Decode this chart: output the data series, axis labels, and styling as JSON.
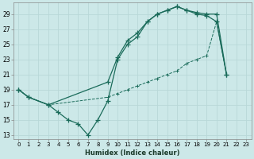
{
  "xlabel": "Humidex (Indice chaleur)",
  "bg_color": "#cce8e8",
  "grid_color": "#b8d8d8",
  "line_color": "#1a6b5a",
  "xlim": [
    -0.5,
    23.5
  ],
  "ylim": [
    12.5,
    30.5
  ],
  "yticks": [
    13,
    15,
    17,
    19,
    21,
    23,
    25,
    27,
    29
  ],
  "xticks": [
    0,
    1,
    2,
    3,
    4,
    5,
    6,
    7,
    8,
    9,
    10,
    11,
    12,
    13,
    14,
    15,
    16,
    17,
    18,
    19,
    20,
    21,
    22,
    23
  ],
  "line1_x": [
    0,
    1,
    3,
    4,
    5,
    6,
    7,
    8,
    9,
    10,
    11,
    12,
    13,
    14,
    15,
    16,
    17,
    18,
    19,
    20,
    21
  ],
  "line1_y": [
    19,
    18,
    17,
    16,
    15,
    14.5,
    13,
    15,
    17.5,
    23,
    25,
    26,
    28,
    29,
    29.5,
    30,
    29.5,
    29.2,
    29,
    29,
    21
  ],
  "line2_x": [
    0,
    1,
    3,
    9,
    10,
    11,
    12,
    13,
    14,
    15,
    16,
    17,
    18,
    19,
    20,
    21
  ],
  "line2_y": [
    19,
    18,
    17,
    20,
    23.3,
    25.5,
    26.5,
    28,
    29,
    29.5,
    30,
    29.5,
    29,
    28.8,
    28,
    21
  ],
  "line3_x": [
    0,
    1,
    3,
    9,
    10,
    11,
    12,
    13,
    14,
    15,
    16,
    17,
    18,
    19,
    20,
    21
  ],
  "line3_y": [
    19,
    18,
    17,
    18,
    18.5,
    19,
    19.5,
    20,
    20.5,
    21,
    21.5,
    22.5,
    23,
    23.5,
    28,
    21
  ]
}
